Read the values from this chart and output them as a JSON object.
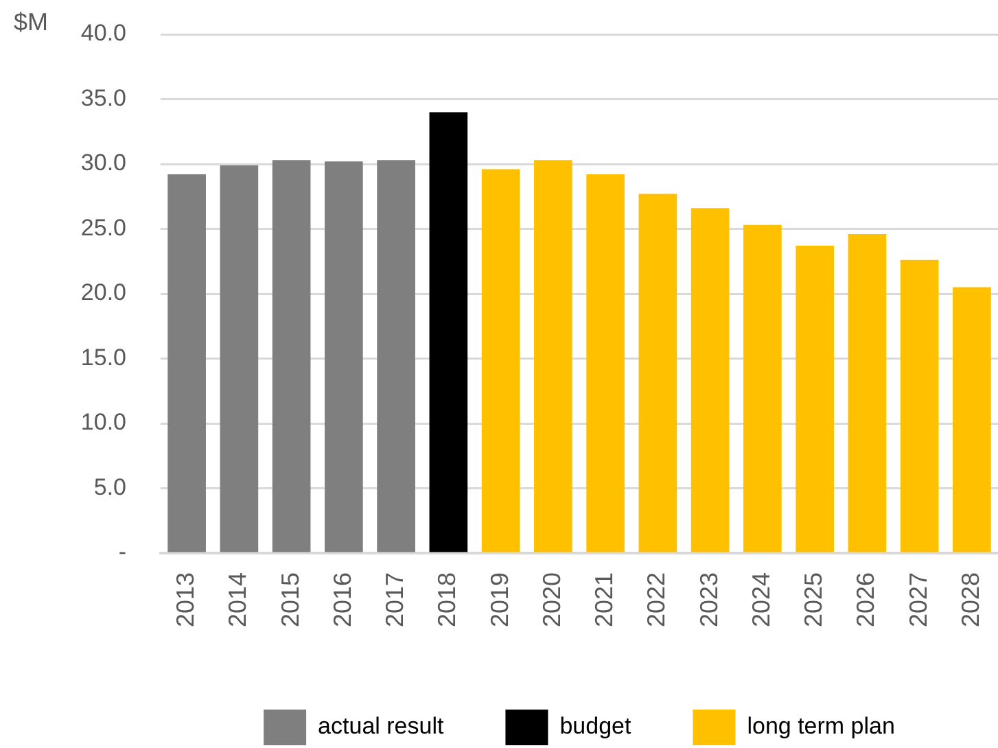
{
  "chart_data": {
    "type": "bar",
    "ylabel": "$M",
    "categories": [
      "2013",
      "2014",
      "2015",
      "2016",
      "2017",
      "2018",
      "2019",
      "2020",
      "2021",
      "2022",
      "2023",
      "2024",
      "2025",
      "2026",
      "2027",
      "2028"
    ],
    "series": [
      {
        "name": "actual result",
        "color": "#7f7f7f",
        "values": [
          29.2,
          29.9,
          30.3,
          30.2,
          30.3,
          null,
          null,
          null,
          null,
          null,
          null,
          null,
          null,
          null,
          null,
          null
        ]
      },
      {
        "name": "budget",
        "color": "#000000",
        "values": [
          null,
          null,
          null,
          null,
          null,
          34.0,
          null,
          null,
          null,
          null,
          null,
          null,
          null,
          null,
          null,
          null
        ]
      },
      {
        "name": "long term plan",
        "color": "#ffc000",
        "values": [
          null,
          null,
          null,
          null,
          null,
          null,
          29.6,
          30.3,
          29.2,
          27.7,
          26.6,
          25.3,
          23.7,
          24.6,
          22.6,
          20.5
        ]
      }
    ],
    "ylim": [
      0,
      40
    ],
    "yticks": [
      {
        "value": 0,
        "label": "-"
      },
      {
        "value": 5,
        "label": "5.0"
      },
      {
        "value": 10,
        "label": "10.0"
      },
      {
        "value": 15,
        "label": "15.0"
      },
      {
        "value": 20,
        "label": "20.0"
      },
      {
        "value": 25,
        "label": "25.0"
      },
      {
        "value": 30,
        "label": "30.0"
      },
      {
        "value": 35,
        "label": "35.0"
      },
      {
        "value": 40,
        "label": "40.0"
      }
    ],
    "grid": "y",
    "legend": "bottom"
  }
}
